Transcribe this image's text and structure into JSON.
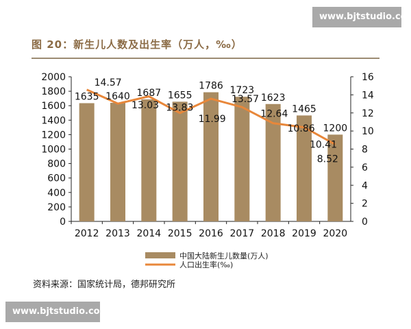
{
  "watermark": "www.bjtstudio.com",
  "title": "图 20：新生儿人数及出生率（万人，‰）",
  "source": "资料来源：国家统计局，德邦研究所",
  "chart_data": {
    "type": "bar+line",
    "categories": [
      "2012",
      "2013",
      "2014",
      "2015",
      "2016",
      "2017",
      "2018",
      "2019",
      "2020"
    ],
    "series": [
      {
        "name": "中国大陆新生儿数量(万人)",
        "type": "bar",
        "axis": "left",
        "color": "#a88b62",
        "values": [
          1635,
          1640,
          1687,
          1655,
          1786,
          1723,
          1623,
          1465,
          1200
        ]
      },
      {
        "name": "人口出生率(‰)",
        "type": "line",
        "axis": "right",
        "color": "#e8873a",
        "values": [
          14.57,
          13.03,
          13.83,
          11.99,
          13.57,
          12.64,
          10.86,
          10.41,
          8.52
        ]
      }
    ],
    "y_left": {
      "range": [
        0,
        2000
      ],
      "ticks": [
        "0",
        "200",
        "400",
        "600",
        "800",
        "1000",
        "1200",
        "1400",
        "1600",
        "1800",
        "2000"
      ]
    },
    "y_right": {
      "range": [
        0,
        16
      ],
      "ticks": [
        "0",
        "2",
        "4",
        "6",
        "8",
        "10",
        "12",
        "14",
        "16"
      ]
    },
    "grid": false,
    "legend": "bottom-center",
    "data_labels": true
  }
}
